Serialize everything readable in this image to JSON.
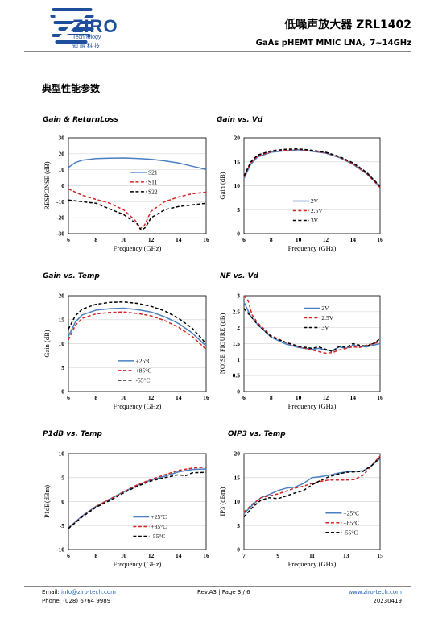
{
  "header": {
    "logo": {
      "name": "ZIRO",
      "sub": "Technology",
      "cn": "知融科技"
    },
    "title": "低噪声放大器 ZRL1402",
    "subtitle": "GaAs pHEMT MMIC LNA，7~14GHz"
  },
  "section_title": "典型性能参数",
  "chart_titles": [
    "Gain & ReturnLoss",
    "Gain vs. Vd",
    "Gain vs. Temp",
    "NF vs. Vd",
    "P1dB vs. Temp",
    "OIP3 vs. Temp"
  ],
  "colors": {
    "blue": "#4a7fc1",
    "red": "#d62424",
    "black": "#000000",
    "brand": "#1f4e9c"
  },
  "chart_data": [
    {
      "type": "line",
      "title": "Gain & ReturnLoss",
      "xlabel": "Frequency (GHz)",
      "ylabel": "RESPONSE (dB)",
      "xlim": [
        6,
        16
      ],
      "ylim": [
        -30,
        30
      ],
      "xticks": [
        6,
        8,
        10,
        12,
        14,
        16
      ],
      "yticks": [
        -30,
        -20,
        -10,
        0,
        10,
        20,
        30
      ],
      "series": [
        {
          "name": "S21",
          "color": "blue",
          "dash": "solid",
          "x": [
            6,
            6.5,
            7,
            8,
            9,
            10,
            11,
            12,
            13,
            14,
            15,
            16
          ],
          "y": [
            11.5,
            14.5,
            16,
            17,
            17.3,
            17.4,
            17.1,
            16.6,
            15.6,
            14.2,
            12.2,
            10.2
          ]
        },
        {
          "name": "S11",
          "color": "red",
          "dash": "dash",
          "x": [
            6,
            7,
            8,
            9,
            10,
            10.5,
            11,
            11.2,
            11.5,
            12,
            13,
            14,
            15,
            16
          ],
          "y": [
            -2,
            -6,
            -8.5,
            -11,
            -15,
            -19,
            -23,
            -27,
            -25,
            -16,
            -10,
            -7,
            -5,
            -4
          ]
        },
        {
          "name": "S22",
          "color": "black",
          "dash": "dash",
          "x": [
            6,
            7,
            8,
            9,
            10,
            10.5,
            11,
            11.3,
            11.6,
            12,
            13,
            14,
            15,
            16
          ],
          "y": [
            -9,
            -10,
            -11,
            -14.5,
            -18,
            -21,
            -24,
            -28,
            -26,
            -20,
            -15,
            -13,
            -12,
            -11
          ]
        }
      ]
    },
    {
      "type": "line",
      "title": "Gain vs. Vd",
      "xlabel": "Frequency (GHz)",
      "ylabel": "Gain (dB)",
      "xlim": [
        6,
        16
      ],
      "ylim": [
        0,
        20
      ],
      "xticks": [
        6,
        8,
        10,
        12,
        14,
        16
      ],
      "yticks": [
        0,
        5,
        10,
        15,
        20
      ],
      "series": [
        {
          "name": "2V",
          "color": "blue",
          "dash": "solid",
          "x": [
            6,
            6.5,
            7,
            8,
            9,
            10,
            11,
            12,
            13,
            14,
            15,
            16
          ],
          "y": [
            11.5,
            14.5,
            16,
            17,
            17.3,
            17.5,
            17.2,
            16.8,
            15.9,
            14.5,
            12.5,
            9.8
          ]
        },
        {
          "name": "2.5V",
          "color": "red",
          "dash": "dash",
          "x": [
            6,
            6.5,
            7,
            8,
            9,
            10,
            11,
            12,
            13,
            14,
            15,
            16
          ],
          "y": [
            11.8,
            14.8,
            16.2,
            17.1,
            17.4,
            17.6,
            17.3,
            16.9,
            16,
            14.6,
            12.6,
            9.6
          ]
        },
        {
          "name": "3V",
          "color": "black",
          "dash": "dash",
          "x": [
            6,
            6.5,
            7,
            8,
            9,
            10,
            11,
            12,
            13,
            14,
            15,
            16
          ],
          "y": [
            12,
            15,
            16.4,
            17.3,
            17.6,
            17.7,
            17.4,
            17,
            16.1,
            14.8,
            12.8,
            9.9
          ]
        }
      ]
    },
    {
      "type": "line",
      "title": "Gain vs. Temp",
      "xlabel": "Frequency (GHz)",
      "ylabel": "Gain (dB)",
      "xlim": [
        6,
        16
      ],
      "ylim": [
        0,
        20
      ],
      "xticks": [
        6,
        8,
        10,
        12,
        14,
        16
      ],
      "yticks": [
        0,
        5,
        10,
        15,
        20
      ],
      "series": [
        {
          "name": "+25°C",
          "color": "blue",
          "dash": "solid",
          "x": [
            6,
            6.5,
            7,
            8,
            9,
            10,
            11,
            12,
            13,
            14,
            15,
            16
          ],
          "y": [
            11.5,
            14.5,
            16,
            17,
            17.3,
            17.4,
            17.1,
            16.6,
            15.6,
            14.2,
            12.2,
            9.5
          ]
        },
        {
          "name": "+85°C",
          "color": "red",
          "dash": "dash",
          "x": [
            6,
            6.5,
            7,
            8,
            9,
            10,
            11,
            12,
            13,
            14,
            15,
            16
          ],
          "y": [
            10.8,
            13.8,
            15.3,
            16.2,
            16.5,
            16.6,
            16.3,
            15.8,
            14.8,
            13.4,
            11.5,
            8.8
          ]
        },
        {
          "name": "-55°C",
          "color": "black",
          "dash": "dash",
          "x": [
            6,
            6.5,
            7,
            8,
            9,
            10,
            11,
            12,
            13,
            14,
            15,
            16
          ],
          "y": [
            13,
            15.8,
            17.2,
            18.2,
            18.6,
            18.7,
            18.4,
            17.8,
            16.8,
            15.3,
            13.2,
            10
          ]
        }
      ]
    },
    {
      "type": "line",
      "title": "NF vs. Vd",
      "xlabel": "Frequency (GHz)",
      "ylabel": "NOISE FIGURE (dB)",
      "xlim": [
        6,
        16
      ],
      "ylim": [
        0,
        3
      ],
      "xticks": [
        6,
        8,
        10,
        12,
        14,
        16
      ],
      "yticks": [
        0,
        0.5,
        1,
        1.5,
        2,
        2.5,
        3
      ],
      "series": [
        {
          "name": "2V",
          "color": "blue",
          "dash": "solid",
          "x": [
            6,
            6.5,
            7,
            7.5,
            8,
            9,
            10,
            11,
            11.5,
            12,
            12.5,
            13,
            13.5,
            14,
            14.5,
            15,
            15.5,
            16
          ],
          "y": [
            2.8,
            2.35,
            2.1,
            1.9,
            1.7,
            1.5,
            1.38,
            1.32,
            1.35,
            1.3,
            1.28,
            1.4,
            1.35,
            1.45,
            1.42,
            1.4,
            1.45,
            1.5
          ]
        },
        {
          "name": "2.5V",
          "color": "red",
          "dash": "dash",
          "x": [
            6,
            6.3,
            6.6,
            7,
            7.5,
            8,
            9,
            10,
            11,
            11.5,
            12,
            12.5,
            13,
            13.5,
            14,
            14.5,
            15,
            15.5,
            16
          ],
          "y": [
            3,
            2.85,
            2.4,
            2.15,
            1.95,
            1.75,
            1.55,
            1.4,
            1.3,
            1.25,
            1.2,
            1.22,
            1.3,
            1.35,
            1.4,
            1.38,
            1.45,
            1.5,
            1.55
          ]
        },
        {
          "name": "3V",
          "color": "black",
          "dash": "dash",
          "x": [
            6,
            6.5,
            7,
            7.5,
            8,
            9,
            10,
            11,
            11.5,
            12,
            12.5,
            13,
            13.5,
            14,
            14.5,
            15,
            15.5,
            16
          ],
          "y": [
            2.6,
            2.35,
            2.1,
            1.9,
            1.72,
            1.55,
            1.42,
            1.35,
            1.4,
            1.32,
            1.25,
            1.42,
            1.38,
            1.5,
            1.45,
            1.42,
            1.5,
            1.65
          ]
        }
      ]
    },
    {
      "type": "line",
      "title": "P1dB vs. Temp",
      "xlabel": "Frequency (GHz)",
      "ylabel": "P1dB(dBm)",
      "xlim": [
        6,
        16
      ],
      "ylim": [
        -10,
        10
      ],
      "xticks": [
        6,
        8,
        10,
        12,
        14,
        16
      ],
      "yticks": [
        -10,
        -5,
        0,
        5,
        10
      ],
      "series": [
        {
          "name": "+25°C",
          "color": "blue",
          "dash": "solid",
          "x": [
            6,
            7,
            8,
            9,
            10,
            11,
            12,
            13,
            14,
            15,
            16
          ],
          "y": [
            -5.5,
            -3,
            -1,
            0.5,
            2,
            3.4,
            4.5,
            5.3,
            6.2,
            6.7,
            6.8
          ]
        },
        {
          "name": "+85°C",
          "color": "red",
          "dash": "dash",
          "x": [
            6,
            7,
            8,
            9,
            10,
            11,
            12,
            13,
            14,
            15,
            16
          ],
          "y": [
            -5.6,
            -3.1,
            -1.1,
            0.5,
            2,
            3.5,
            4.6,
            5.6,
            6.5,
            7,
            7.2
          ]
        },
        {
          "name": "-55°C",
          "color": "black",
          "dash": "dash",
          "x": [
            6,
            7,
            8,
            9,
            10,
            11,
            12,
            13,
            14,
            14.5,
            15,
            16
          ],
          "y": [
            -5.6,
            -3.2,
            -1.2,
            0.2,
            1.8,
            3.2,
            4.3,
            5,
            5.6,
            5.4,
            6,
            6.1
          ]
        }
      ]
    },
    {
      "type": "line",
      "title": "OIP3 vs. Temp",
      "xlabel": "Frequency (GHz)",
      "ylabel": "IP3 (dBm)",
      "xlim": [
        7,
        15
      ],
      "ylim": [
        0,
        20
      ],
      "xticks": [
        7,
        9,
        11,
        13,
        15
      ],
      "yticks": [
        0,
        5,
        10,
        15,
        20
      ],
      "series": [
        {
          "name": "+25°C",
          "color": "blue",
          "dash": "solid",
          "x": [
            7,
            7.5,
            8,
            8.5,
            9,
            9.5,
            10,
            10.5,
            11,
            11.5,
            12,
            12.5,
            13,
            13.5,
            14,
            14.5,
            15
          ],
          "y": [
            7.5,
            9.3,
            10.8,
            11.5,
            12.3,
            12.8,
            13,
            13.8,
            15,
            15.2,
            15.5,
            15.9,
            16.2,
            16.3,
            16.4,
            17.5,
            19
          ]
        },
        {
          "name": "+85°C",
          "color": "red",
          "dash": "dash",
          "x": [
            7,
            7.5,
            8,
            8.5,
            9,
            9.5,
            10,
            10.5,
            11,
            11.5,
            12,
            12.5,
            13,
            13.5,
            14,
            14.5,
            15
          ],
          "y": [
            7.8,
            9.5,
            10.8,
            11.2,
            11.6,
            12.2,
            12.8,
            13.2,
            13.8,
            14.2,
            14.5,
            14.5,
            14.5,
            14.6,
            15.5,
            17.5,
            19.5
          ]
        },
        {
          "name": "-55°C",
          "color": "black",
          "dash": "dash",
          "x": [
            7,
            7.5,
            8,
            8.5,
            9,
            9.5,
            10,
            10.5,
            11,
            11.5,
            12,
            12.5,
            13,
            13.5,
            14,
            14.5,
            15
          ],
          "y": [
            6.8,
            8.8,
            10.3,
            10.8,
            10.6,
            11.2,
            11.8,
            12.3,
            13.5,
            14.4,
            15.2,
            15.7,
            16.1,
            16.2,
            16.3,
            17.5,
            19.2
          ]
        }
      ]
    }
  ],
  "footer": {
    "email_label": "Email:",
    "email": "info@ziro-tech.com",
    "phone": "Phone:  (028) 6764 9989",
    "page": "Rev.A3 | Page 3 / 6",
    "web": "www.ziro-tech.com",
    "date": "20230419"
  }
}
